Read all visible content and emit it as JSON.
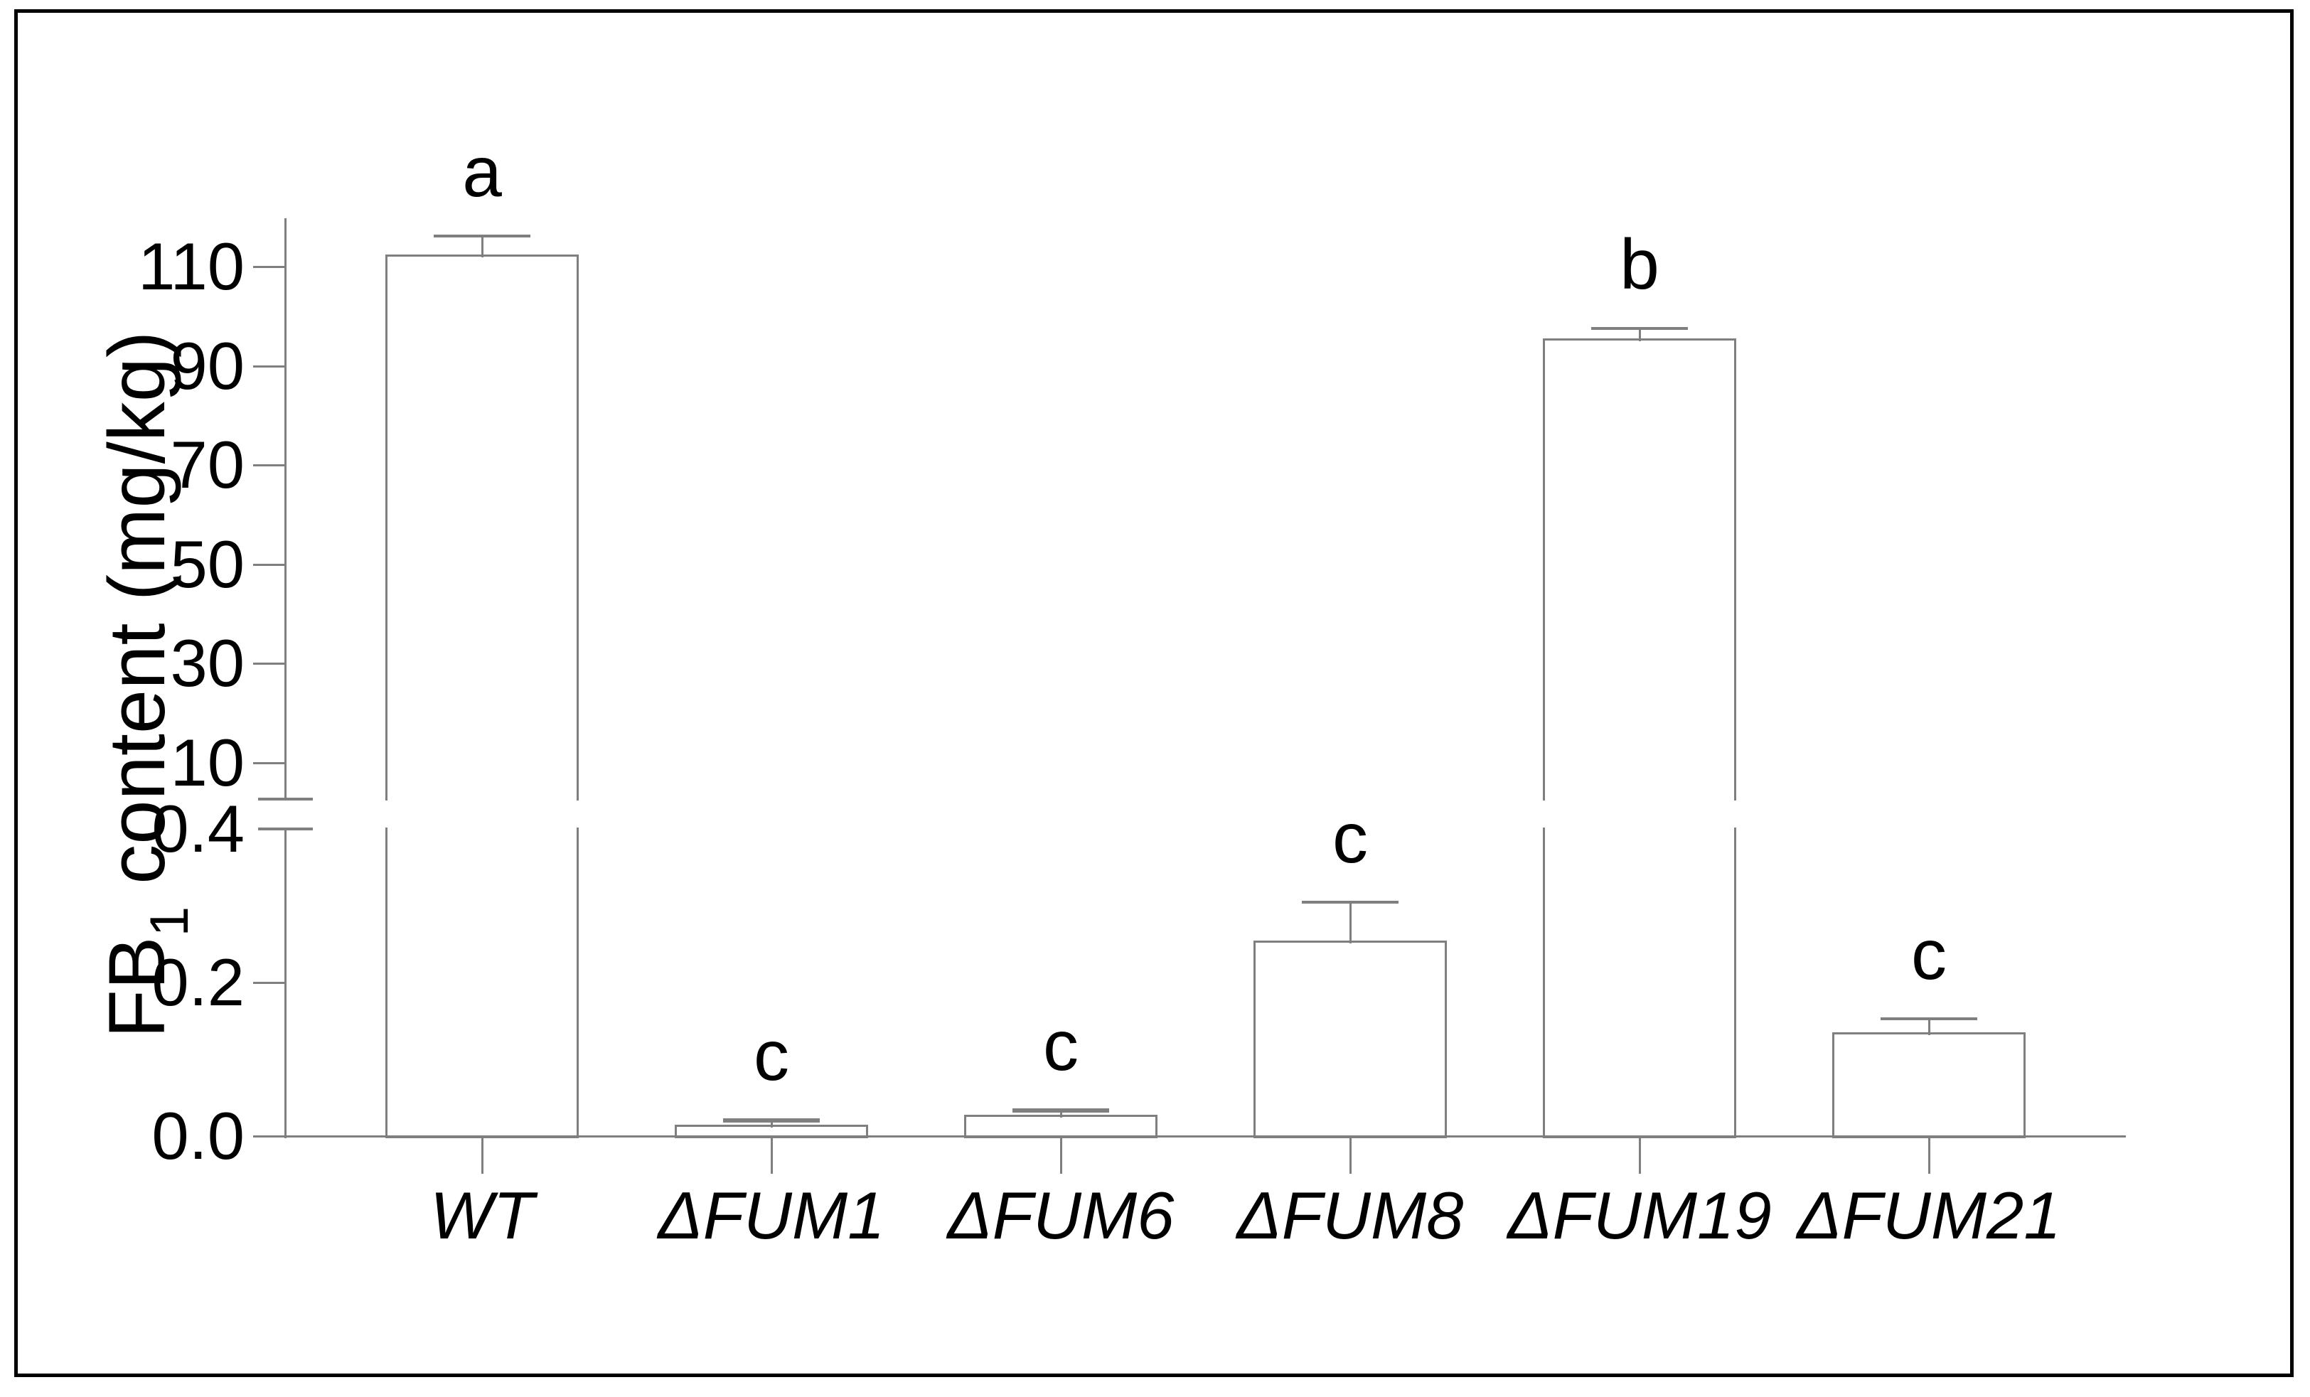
{
  "figure": {
    "background": "#ffffff",
    "border_color": "#000000",
    "y_axis_title": {
      "prefix": "FB",
      "subscript": "1",
      "suffix": " content (mg/kg)"
    }
  },
  "chart_data": {
    "type": "bar",
    "title": "",
    "xlabel": "",
    "ylabel": "FB1 content (mg/kg)",
    "units": "mg/kg",
    "categories": [
      "WT",
      "ΔFUM1",
      "ΔFUM6",
      "ΔFUM8",
      "ΔFUM19",
      "ΔFUM21"
    ],
    "values": [
      112.5,
      0.015,
      0.028,
      0.255,
      95.5,
      0.135
    ],
    "errors": [
      3.7,
      0.006,
      0.006,
      0.05,
      2.0,
      0.018
    ],
    "sig_labels": [
      "a",
      "c",
      "c",
      "c",
      "b",
      "c"
    ],
    "axis_break": {
      "enabled": true,
      "lower_section_range": [
        0.0,
        0.45
      ],
      "upper_section_range": [
        4,
        120
      ]
    },
    "upper_ticks": [
      {
        "v": 10,
        "label": "10"
      },
      {
        "v": 30,
        "label": "30"
      },
      {
        "v": 50,
        "label": "50"
      },
      {
        "v": 70,
        "label": "70"
      },
      {
        "v": 90,
        "label": "90"
      },
      {
        "v": 110,
        "label": "110"
      }
    ],
    "lower_ticks": [
      {
        "v": 0.0,
        "label": "0.0",
        "break_mark": false
      },
      {
        "v": 0.2,
        "label": "0.2",
        "break_mark": false
      },
      {
        "v": 0.4,
        "label": "0.4",
        "break_mark": true
      }
    ],
    "legend": null,
    "grid": "off",
    "colors": {
      "bar_fill": "#ffffff",
      "bar_outline": "#7f7f7f",
      "axis": "#7f7f7f",
      "text": "#000000"
    }
  }
}
